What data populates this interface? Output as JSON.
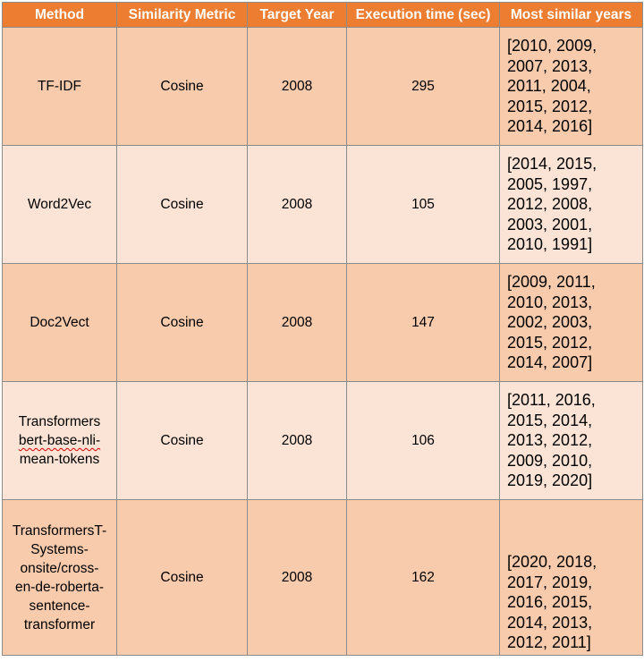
{
  "headers": [
    "Method",
    "Similarity Metric",
    "Target Year",
    "Execution time (sec)",
    "Most similar years"
  ],
  "rows": [
    {
      "method_lines": [
        "TF-IDF"
      ],
      "metric": "Cosine",
      "target_year": "2008",
      "time": "295",
      "years_lines": [
        "[2010, 2009,",
        "2007, 2013,",
        "2011, 2004,",
        "2015, 2012,",
        "2014, 2016]"
      ]
    },
    {
      "method_lines": [
        "Word2Vec"
      ],
      "metric": "Cosine",
      "target_year": "2008",
      "time": "105",
      "years_lines": [
        "[2014, 2015,",
        "2005, 1997,",
        "2012, 2008,",
        "2003, 2001,",
        "2010, 1991]"
      ]
    },
    {
      "method_lines": [
        "Doc2Vect"
      ],
      "metric": "Cosine",
      "target_year": "2008",
      "time": "147",
      "years_lines": [
        "[2009, 2011,",
        "2010, 2013,",
        "2002, 2003,",
        "2015, 2012,",
        "2014, 2007]"
      ]
    },
    {
      "method_lines": [
        "Transformers",
        "bert-base-nli-",
        "mean-tokens"
      ],
      "metric": "Cosine",
      "target_year": "2008",
      "time": "106",
      "years_lines": [
        "[2011, 2016,",
        "2015, 2014,",
        "2013, 2012,",
        "2009, 2010,",
        "2019, 2020]"
      ]
    },
    {
      "method_lines": [
        "TransformersT-",
        "Systems-",
        "onsite/cross-",
        "en-de-roberta-",
        "sentence-",
        "transformer"
      ],
      "metric": "Cosine",
      "target_year": "2008",
      "time": "162",
      "years_lines": [
        "[2020, 2018,",
        "2017, 2019,",
        "2016, 2015,",
        "2014, 2013,",
        "2012, 2011]"
      ]
    }
  ]
}
